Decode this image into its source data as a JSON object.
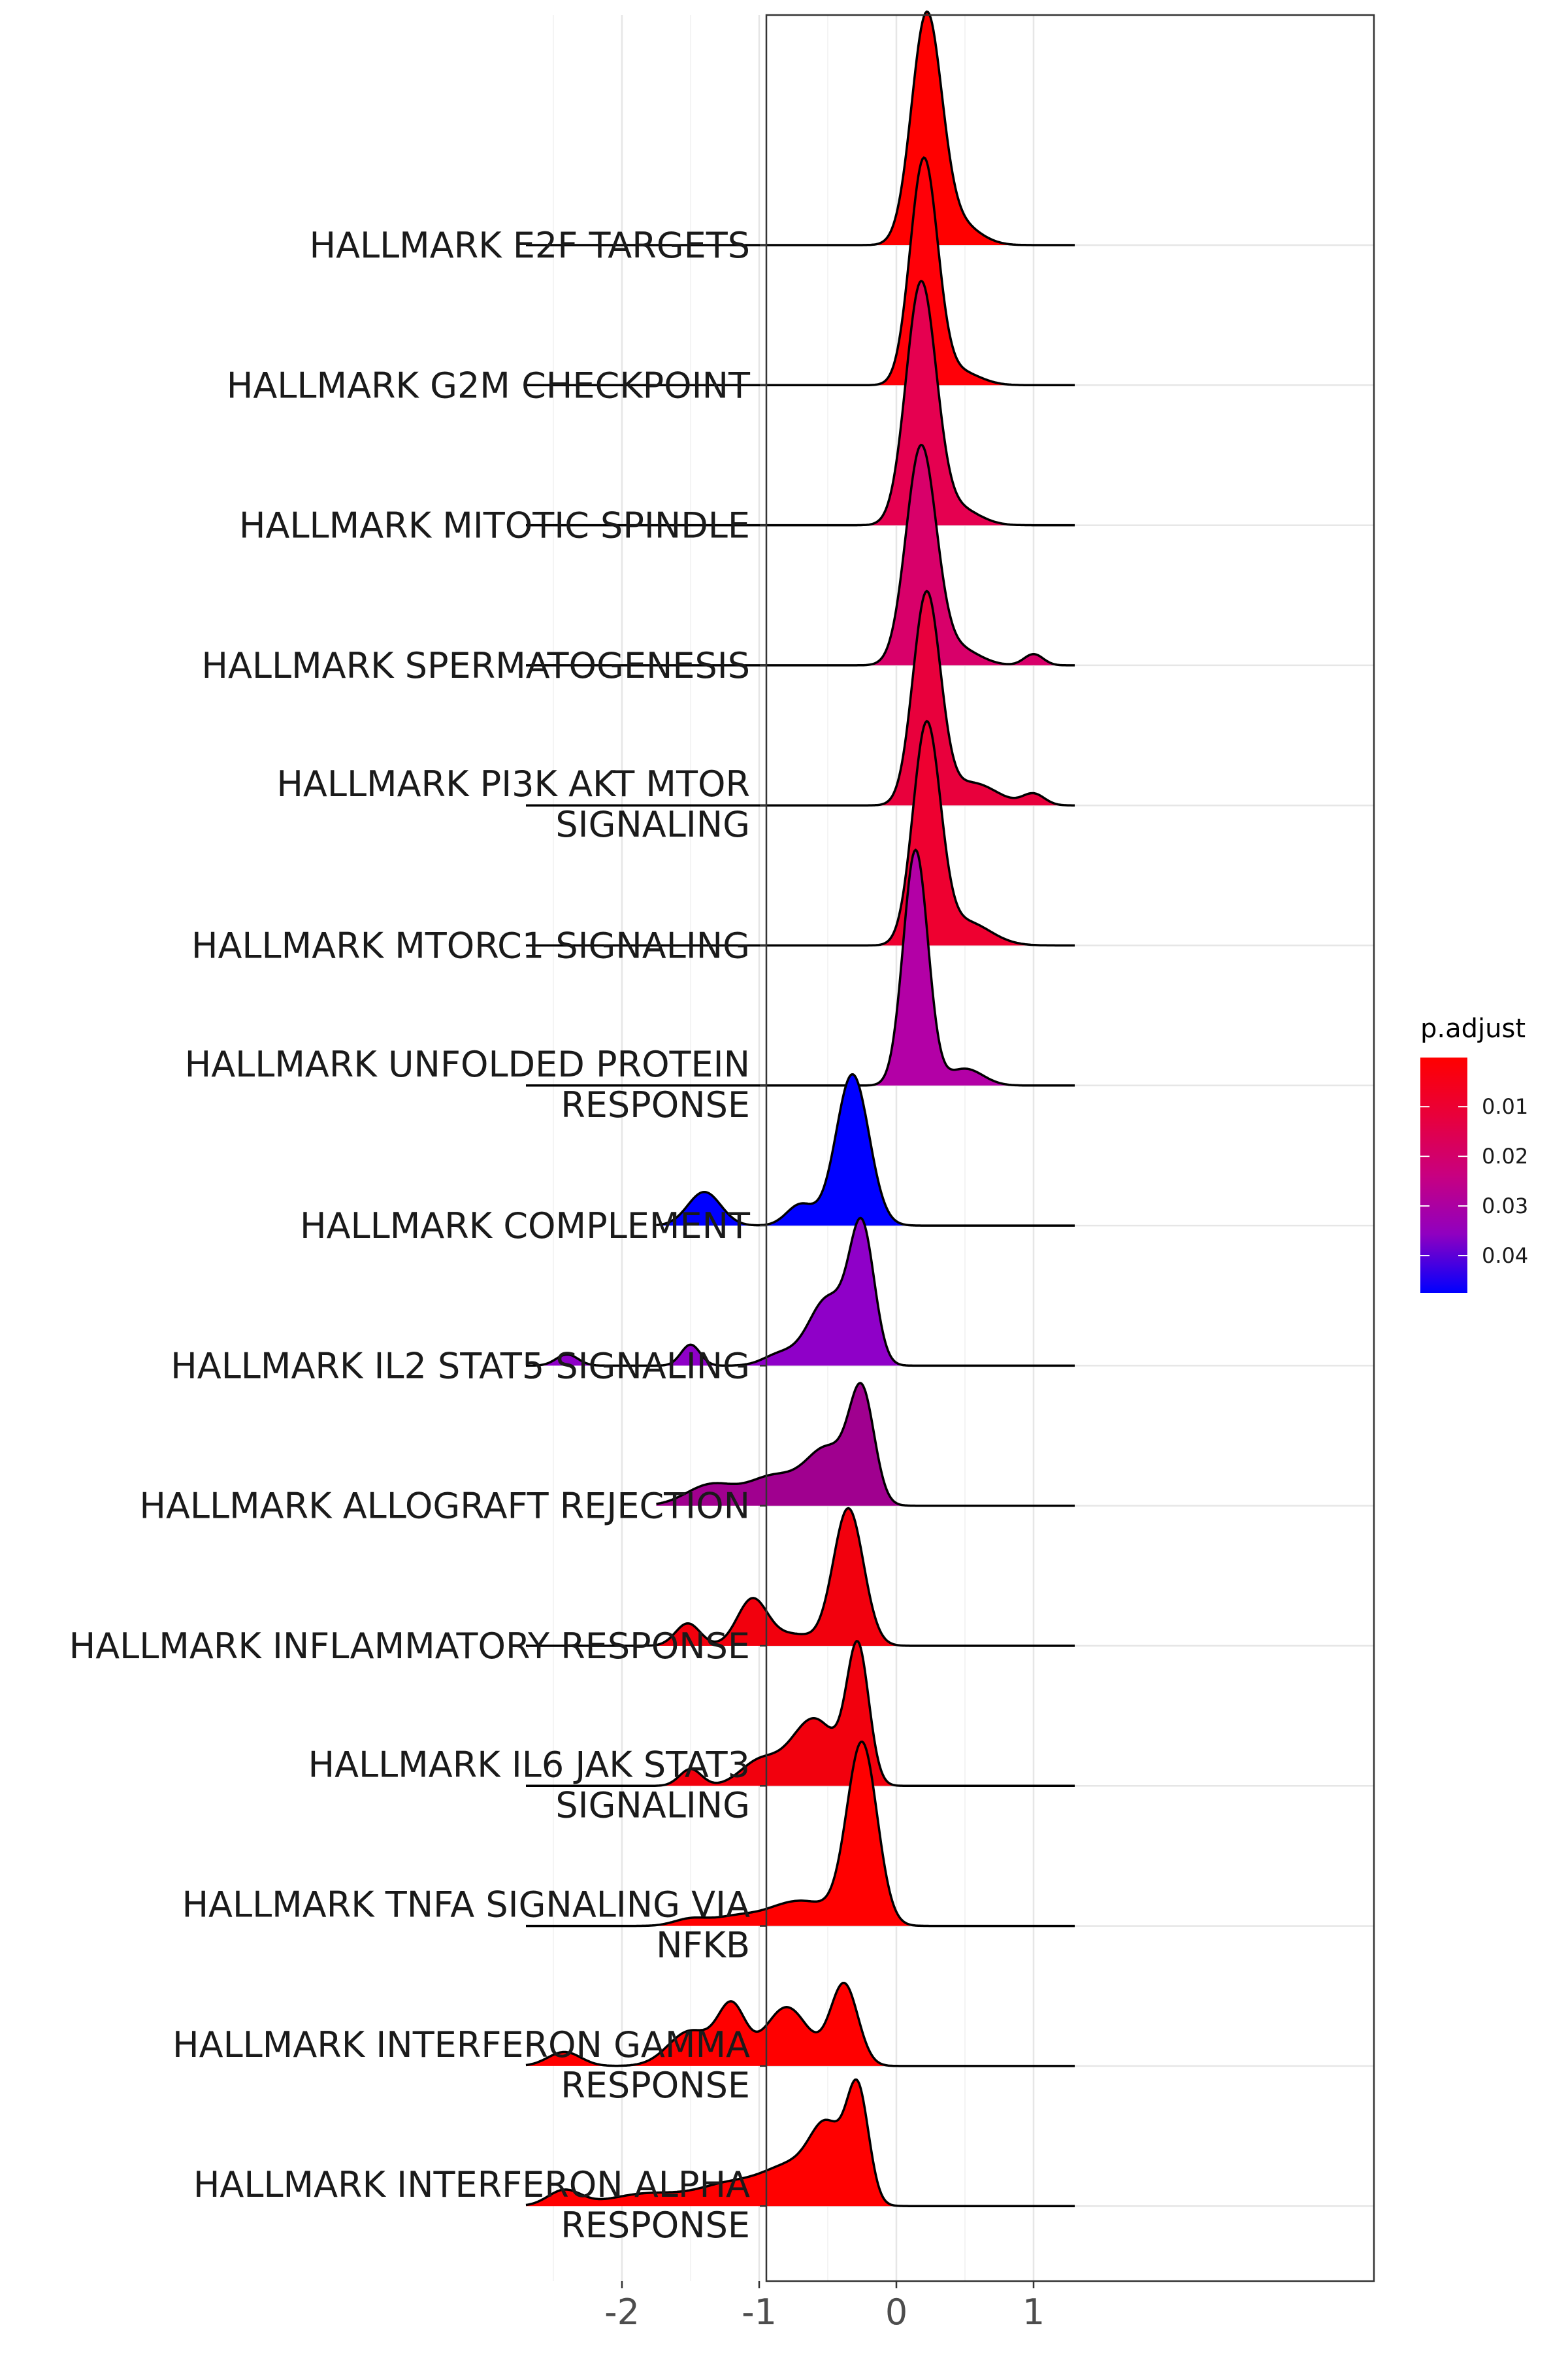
{
  "chart_data": {
    "type": "ridgeline",
    "title": "",
    "xlabel": "",
    "ylabel": "",
    "xlim": [
      -2.9,
      1.5
    ],
    "x_ticks": [
      -2,
      -1,
      0,
      1
    ],
    "x_tick_labels": [
      "-2",
      "-1",
      "0",
      "1"
    ],
    "grid": true,
    "legend": {
      "title": "p.adjust",
      "placement": "right",
      "low_color": "#FF0000",
      "high_color": "#0000FF",
      "range": [
        0.0001,
        0.0475
      ],
      "ticks": [
        0.01,
        0.02,
        0.03,
        0.04
      ],
      "tick_labels": [
        "0.01",
        "0.02",
        "0.03",
        "0.04"
      ]
    },
    "series": [
      {
        "name": "HALLMARK INTERFERON ALPHA RESPONSE",
        "label_lines": [
          "HALLMARK INTERFERON ALPHA",
          "RESPONSE"
        ],
        "p_adjust": 0.0015,
        "color": "#FF0000",
        "x_range": [
          -2.7,
          1.3
        ],
        "peaks": [
          [
            -2.42,
            0.11,
            0.12
          ],
          [
            -1.8,
            0.09,
            0.28
          ],
          [
            -1.22,
            0.14,
            0.22
          ],
          [
            -0.75,
            0.28,
            0.22
          ],
          [
            -0.5,
            0.45,
            0.12
          ],
          [
            -0.28,
            0.78,
            0.08
          ]
        ]
      },
      {
        "name": "HALLMARK INTERFERON GAMMA RESPONSE",
        "label_lines": [
          "HALLMARK INTERFERON GAMMA",
          "RESPONSE"
        ],
        "p_adjust": 0.0015,
        "color": "#FF0000",
        "x_range": [
          -2.7,
          1.3
        ],
        "peaks": [
          [
            -2.42,
            0.1,
            0.12
          ],
          [
            -1.5,
            0.25,
            0.16
          ],
          [
            -1.2,
            0.4,
            0.1
          ],
          [
            -0.8,
            0.42,
            0.16
          ],
          [
            -0.38,
            0.58,
            0.1
          ]
        ]
      },
      {
        "name": "HALLMARK TNFA SIGNALING VIA NFKB",
        "label_lines": [
          "HALLMARK TNFA SIGNALING VIA",
          "NFKB"
        ],
        "p_adjust": 0.0015,
        "color": "#FF0000",
        "x_range": [
          -2.7,
          1.3
        ],
        "peaks": [
          [
            -1.5,
            0.05,
            0.12
          ],
          [
            -1.2,
            0.05,
            0.15
          ],
          [
            -0.7,
            0.18,
            0.25
          ],
          [
            -0.25,
            1.28,
            0.11
          ]
        ]
      },
      {
        "name": "HALLMARK IL6 JAK STAT3 SIGNALING",
        "label_lines": [
          "HALLMARK IL6 JAK STAT3",
          "SIGNALING"
        ],
        "p_adjust": 0.006,
        "color": "#F2000D",
        "x_range": [
          -2.7,
          1.3
        ],
        "peaks": [
          [
            -1.5,
            0.12,
            0.08
          ],
          [
            -1.0,
            0.17,
            0.14
          ],
          [
            -0.6,
            0.48,
            0.17
          ],
          [
            -0.28,
            0.95,
            0.08
          ]
        ]
      },
      {
        "name": "HALLMARK INFLAMMATORY RESPONSE",
        "label_lines": [
          "HALLMARK INFLAMMATORY RESPONSE"
        ],
        "p_adjust": 0.006,
        "color": "#F2000D",
        "x_range": [
          -2.7,
          1.3
        ],
        "peaks": [
          [
            -1.52,
            0.16,
            0.09
          ],
          [
            -1.05,
            0.33,
            0.11
          ],
          [
            -0.75,
            0.08,
            0.15
          ],
          [
            -0.35,
            0.98,
            0.11
          ]
        ]
      },
      {
        "name": "HALLMARK ALLOGRAFT REJECTION",
        "label_lines": [
          "HALLMARK ALLOGRAFT REJECTION"
        ],
        "p_adjust": 0.03,
        "color": "#A0008F",
        "x_range": [
          -1.75,
          1.3
        ],
        "peaks": [
          [
            -1.35,
            0.15,
            0.18
          ],
          [
            -0.9,
            0.2,
            0.18
          ],
          [
            -0.5,
            0.4,
            0.16
          ],
          [
            -0.25,
            0.75,
            0.09
          ]
        ]
      },
      {
        "name": "HALLMARK IL2 STAT5 SIGNALING",
        "label_lines": [
          "HALLMARK IL2 STAT5 SIGNALING"
        ],
        "p_adjust": 0.037,
        "color": "#8F00C8",
        "x_range": [
          -2.7,
          1.3
        ],
        "peaks": [
          [
            -2.4,
            0.08,
            0.08
          ],
          [
            -1.5,
            0.15,
            0.07
          ],
          [
            -0.85,
            0.08,
            0.12
          ],
          [
            -0.5,
            0.48,
            0.14
          ],
          [
            -0.25,
            0.95,
            0.09
          ]
        ]
      },
      {
        "name": "HALLMARK COMPLEMENT",
        "label_lines": [
          "HALLMARK COMPLEMENT"
        ],
        "p_adjust": 0.0475,
        "color": "#0000FF",
        "x_range": [
          -1.75,
          1.3
        ],
        "peaks": [
          [
            -1.4,
            0.24,
            0.12
          ],
          [
            -0.7,
            0.15,
            0.1
          ],
          [
            -0.32,
            1.08,
            0.12
          ]
        ]
      },
      {
        "name": "HALLMARK UNFOLDED PROTEIN RESPONSE",
        "label_lines": [
          "HALLMARK UNFOLDED PROTEIN",
          "RESPONSE"
        ],
        "p_adjust": 0.032,
        "color": "#B300A6",
        "x_range": [
          -2.7,
          1.3
        ],
        "peaks": [
          [
            0.14,
            1.68,
            0.09
          ],
          [
            0.5,
            0.12,
            0.13
          ]
        ]
      },
      {
        "name": "HALLMARK MTORC1 SIGNALING",
        "label_lines": [
          "HALLMARK MTORC1 SIGNALING"
        ],
        "p_adjust": 0.008,
        "color": "#EE0030",
        "x_range": [
          -2.7,
          1.3
        ],
        "peaks": [
          [
            0.22,
            1.55,
            0.1
          ],
          [
            0.5,
            0.17,
            0.18
          ]
        ]
      },
      {
        "name": "HALLMARK PI3K AKT MTOR SIGNALING",
        "label_lines": [
          "HALLMARK PI3K AKT MTOR",
          "SIGNALING"
        ],
        "p_adjust": 0.01,
        "color": "#E8003C",
        "x_range": [
          -2.7,
          1.3
        ],
        "peaks": [
          [
            0.22,
            1.5,
            0.1
          ],
          [
            0.55,
            0.16,
            0.18
          ],
          [
            1.0,
            0.08,
            0.08
          ]
        ]
      },
      {
        "name": "HALLMARK SPERMATOGENESIS",
        "label_lines": [
          "HALLMARK SPERMATOGENESIS"
        ],
        "p_adjust": 0.022,
        "color": "#D8006A",
        "x_range": [
          -2.7,
          1.3
        ],
        "peaks": [
          [
            0.18,
            1.55,
            0.11
          ],
          [
            0.45,
            0.12,
            0.15
          ],
          [
            1.0,
            0.08,
            0.07
          ]
        ]
      },
      {
        "name": "HALLMARK MITOTIC SPINDLE",
        "label_lines": [
          "HALLMARK MITOTIC SPINDLE"
        ],
        "p_adjust": 0.015,
        "color": "#E50050",
        "x_range": [
          -2.7,
          1.3
        ],
        "peaks": [
          [
            0.18,
            1.72,
            0.11
          ],
          [
            0.45,
            0.12,
            0.15
          ]
        ]
      },
      {
        "name": "HALLMARK G2M CHECKPOINT",
        "label_lines": [
          "HALLMARK G2M CHECKPOINT"
        ],
        "p_adjust": 0.0008,
        "color": "#FF0008",
        "x_range": [
          -2.7,
          1.3
        ],
        "peaks": [
          [
            0.2,
            1.6,
            0.1
          ],
          [
            0.45,
            0.1,
            0.15
          ]
        ]
      },
      {
        "name": "HALLMARK E2F TARGETS",
        "label_lines": [
          "HALLMARK E2F TARGETS"
        ],
        "p_adjust": 0.0005,
        "color": "#FF0000",
        "x_range": [
          -2.7,
          1.3
        ],
        "peaks": [
          [
            0.22,
            1.62,
            0.11
          ],
          [
            0.45,
            0.15,
            0.15
          ]
        ]
      }
    ]
  }
}
